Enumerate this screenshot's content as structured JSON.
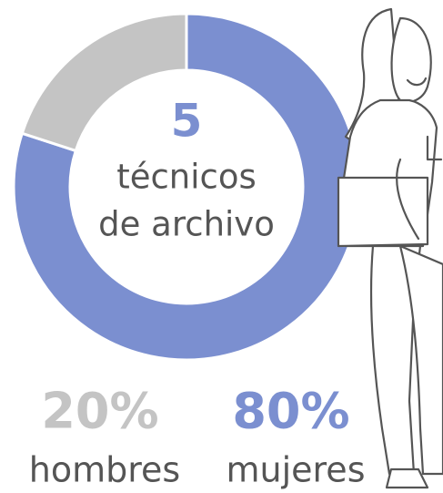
{
  "chart_data": {
    "type": "pie",
    "donut": true,
    "total": 5,
    "center_label": [
      "técnicos",
      "de archivo"
    ],
    "categories": [
      "mujeres",
      "hombres"
    ],
    "values": [
      80,
      20
    ],
    "value_labels": [
      "80%",
      "20%"
    ],
    "colors": [
      "#7b8fd0",
      "#c4c4c4"
    ]
  }
}
